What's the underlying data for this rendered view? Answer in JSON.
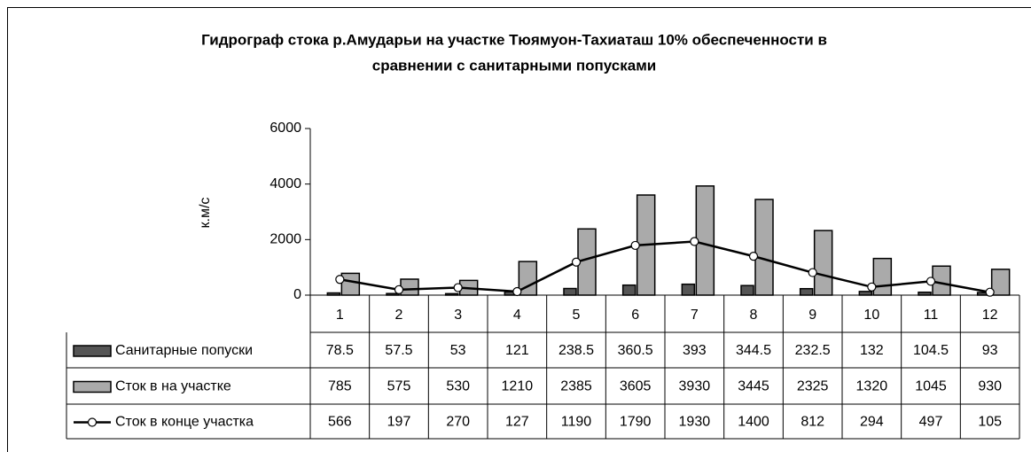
{
  "chart_data": {
    "type": "bar",
    "title": [
      "Гидрограф стока р.Амударьи на участке Тюямуон-Тахиаташ 10% обеспеченности в",
      "сравнении с санитарными попусками"
    ],
    "y_label": "к.м/с",
    "categories": [
      "1",
      "2",
      "3",
      "4",
      "5",
      "6",
      "7",
      "8",
      "9",
      "10",
      "11",
      "12"
    ],
    "series": [
      {
        "name": "Санитарные попуски",
        "color": "#555555",
        "values": [
          78.5,
          57.5,
          53,
          121,
          238.5,
          360.5,
          393,
          344.5,
          232.5,
          132,
          104.5,
          93
        ]
      },
      {
        "name": "Сток в на участке",
        "color": "#aaaaaa",
        "values": [
          785,
          575,
          530,
          1210,
          2385,
          3605,
          3930,
          3445,
          2325,
          1320,
          1045,
          930
        ]
      },
      {
        "name": "Сток в конце участка",
        "type": "line",
        "color": "#000000",
        "values": [
          566,
          197,
          270,
          127,
          1190,
          1790,
          1930,
          1400,
          812,
          294,
          497,
          105
        ]
      }
    ],
    "ylim": [
      0,
      6000
    ],
    "yticks": [
      0,
      2000,
      4000,
      6000
    ],
    "data_table": true
  }
}
